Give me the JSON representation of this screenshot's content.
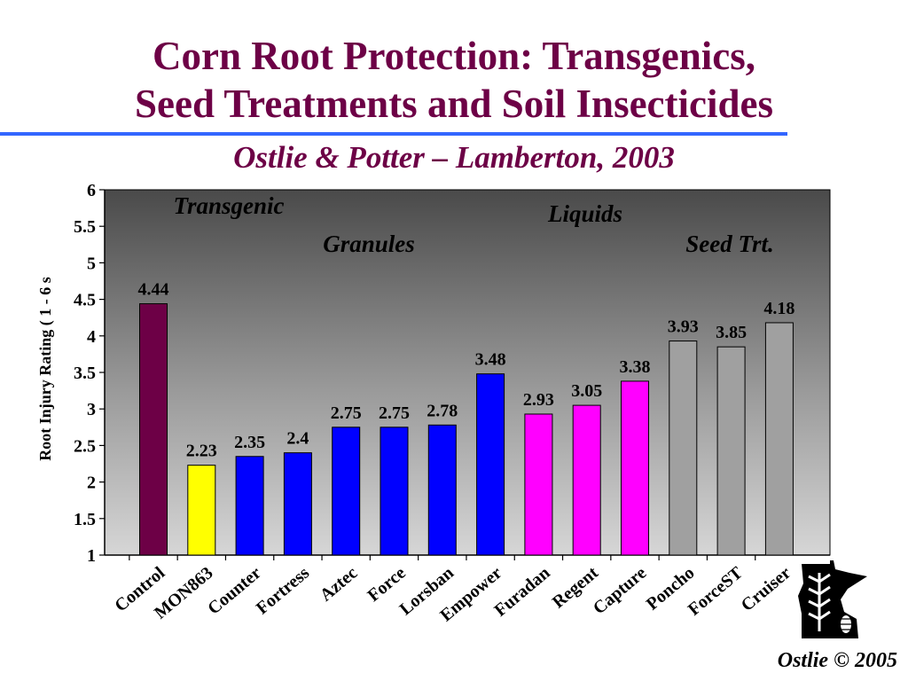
{
  "page": {
    "title_line1": "Corn Root Protection: Transgenics,",
    "title_line2": "Seed Treatments and Soil Insecticides",
    "subtitle": "Ostlie & Potter – Lamberton, 2003",
    "credit": "Ostlie © 2005",
    "logo_icon": "minnesota-state-icon"
  },
  "colors": {
    "title": "#6d0046",
    "rule": "#3366ff",
    "control": "#6d0046",
    "transgenic": "#ffff00",
    "granule": "#0000ff",
    "liquid": "#ff00ff",
    "seed": "#a0a0a0"
  },
  "chart_data": {
    "type": "bar",
    "ylabel": "Root Injury Rating ( 1 - 6 s",
    "xlabel": "",
    "ylim": [
      1,
      6
    ],
    "yticks": [
      "1",
      "1.5",
      "2",
      "2.5",
      "3",
      "3.5",
      "4",
      "4.5",
      "5",
      "5.5",
      "6"
    ],
    "ytick_values": [
      1,
      1.5,
      2,
      2.5,
      3,
      3.5,
      4,
      4.5,
      5,
      5.5,
      6
    ],
    "grid": false,
    "categories": [
      "Control",
      "MON863",
      "Counter",
      "Fortress",
      "Aztec",
      "Force",
      "Lorsban",
      "Empower",
      "Furadan",
      "Regent",
      "Capture",
      "Poncho",
      "ForceST",
      "Cruiser"
    ],
    "values": [
      4.44,
      2.23,
      2.35,
      2.4,
      2.75,
      2.75,
      2.78,
      3.48,
      2.93,
      3.05,
      3.38,
      3.93,
      3.85,
      4.18
    ],
    "value_labels": [
      "4.44",
      "2.23",
      "2.35",
      "2.4",
      "2.75",
      "2.75",
      "2.78",
      "3.48",
      "2.93",
      "3.05",
      "3.38",
      "3.93",
      "3.85",
      "4.18"
    ],
    "groups": [
      "control",
      "transgenic",
      "granule",
      "granule",
      "granule",
      "granule",
      "granule",
      "granule",
      "liquid",
      "liquid",
      "liquid",
      "seed",
      "seed",
      "seed"
    ],
    "annotations": [
      "Transgenic",
      "Liquids",
      "Granules",
      "Seed Trt."
    ]
  }
}
